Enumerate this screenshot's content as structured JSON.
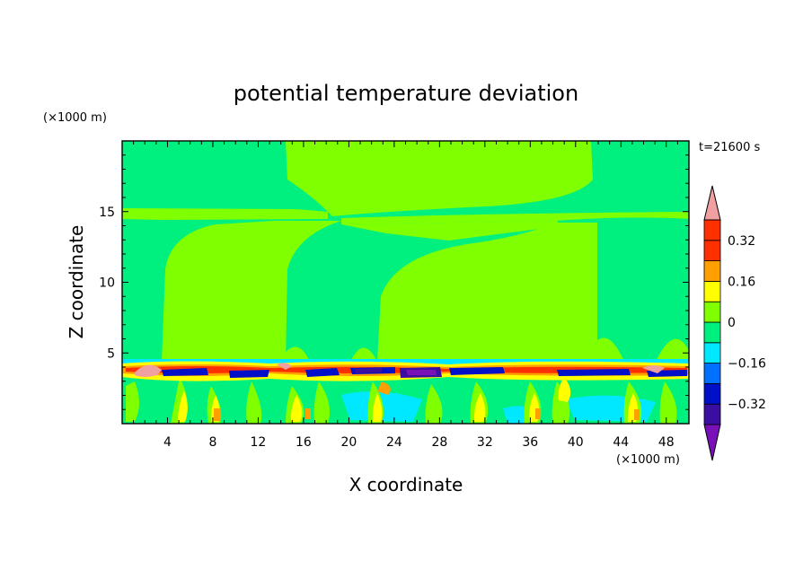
{
  "chart_data": {
    "type": "heatmap",
    "title": "potential temperature deviation",
    "xlabel": "X coordinate",
    "ylabel": "Z coordinate",
    "x_unit": "(×1000 m)",
    "y_unit": "(×1000 m)",
    "time_label": "t=21600 s",
    "xlim": [
      0,
      50
    ],
    "ylim": [
      0,
      20
    ],
    "x_ticks": [
      {
        "value": 4,
        "label": "4"
      },
      {
        "value": 8,
        "label": "8"
      },
      {
        "value": 12,
        "label": "12"
      },
      {
        "value": 16,
        "label": "16"
      },
      {
        "value": 20,
        "label": "20"
      },
      {
        "value": 24,
        "label": "24"
      },
      {
        "value": 28,
        "label": "28"
      },
      {
        "value": 32,
        "label": "32"
      },
      {
        "value": 36,
        "label": "36"
      },
      {
        "value": 40,
        "label": "40"
      },
      {
        "value": 44,
        "label": "44"
      },
      {
        "value": 48,
        "label": "48"
      }
    ],
    "y_ticks": [
      {
        "value": 5,
        "label": "5"
      },
      {
        "value": 10,
        "label": "10"
      },
      {
        "value": 15,
        "label": "15"
      }
    ],
    "colorbar": {
      "levels": [
        -0.4,
        -0.32,
        -0.24,
        -0.16,
        -0.08,
        0,
        0.08,
        0.16,
        0.24,
        0.32,
        0.4
      ],
      "colors": [
        "#7a10b8",
        "#3a0ea0",
        "#0010c8",
        "#0070ff",
        "#00e8ff",
        "#00f080",
        "#80ff00",
        "#ffff00",
        "#ffa000",
        "#ff3000",
        "#f0a0a0"
      ],
      "labels": [
        {
          "value": 0.32,
          "label": "0.32"
        },
        {
          "value": 0.16,
          "label": "0.16"
        },
        {
          "value": 0,
          "label": "0"
        },
        {
          "value": -0.16,
          "label": "−0.16"
        },
        {
          "value": -0.32,
          "label": "−0.32"
        }
      ]
    }
  }
}
